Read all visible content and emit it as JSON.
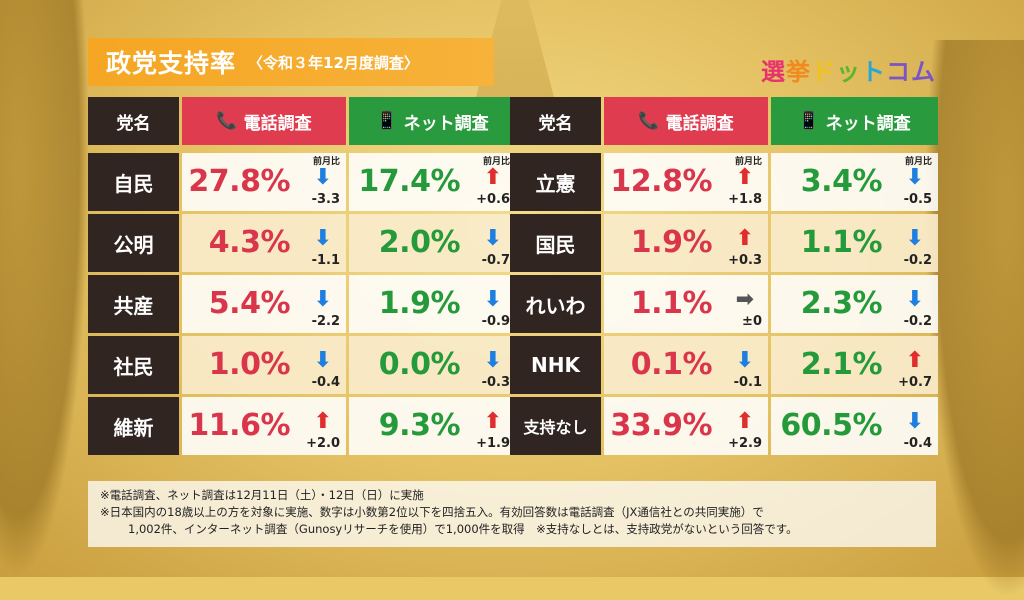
{
  "title": {
    "main": "政党支持率",
    "sub": "〈令和３年12月度調査〉"
  },
  "logo": [
    "選",
    "挙",
    "ド",
    "ッ",
    "ト",
    "コム"
  ],
  "headers": {
    "party": "党名",
    "phone": "電話調査",
    "net": "ネット調査",
    "prev": "前月比"
  },
  "left_rows": [
    {
      "party": "自民",
      "phone": {
        "pct": "27.8%",
        "dir": "down",
        "delta": "-3.3"
      },
      "net": {
        "pct": "17.4%",
        "dir": "up",
        "delta": "+0.6"
      }
    },
    {
      "party": "公明",
      "phone": {
        "pct": "4.3%",
        "dir": "down",
        "delta": "-1.1"
      },
      "net": {
        "pct": "2.0%",
        "dir": "down",
        "delta": "-0.7"
      }
    },
    {
      "party": "共産",
      "phone": {
        "pct": "5.4%",
        "dir": "down",
        "delta": "-2.2"
      },
      "net": {
        "pct": "1.9%",
        "dir": "down",
        "delta": "-0.9"
      }
    },
    {
      "party": "社民",
      "phone": {
        "pct": "1.0%",
        "dir": "down",
        "delta": "-0.4"
      },
      "net": {
        "pct": "0.0%",
        "dir": "down",
        "delta": "-0.3"
      }
    },
    {
      "party": "維新",
      "phone": {
        "pct": "11.6%",
        "dir": "up",
        "delta": "+2.0"
      },
      "net": {
        "pct": "9.3%",
        "dir": "up",
        "delta": "+1.9"
      }
    }
  ],
  "right_rows": [
    {
      "party": "立憲",
      "phone": {
        "pct": "12.8%",
        "dir": "up",
        "delta": "+1.8"
      },
      "net": {
        "pct": "3.4%",
        "dir": "down",
        "delta": "-0.5"
      }
    },
    {
      "party": "国民",
      "phone": {
        "pct": "1.9%",
        "dir": "up",
        "delta": "+0.3"
      },
      "net": {
        "pct": "1.1%",
        "dir": "down",
        "delta": "-0.2"
      }
    },
    {
      "party": "れいわ",
      "phone": {
        "pct": "1.1%",
        "dir": "flat",
        "delta": "±0"
      },
      "net": {
        "pct": "2.3%",
        "dir": "down",
        "delta": "-0.2"
      }
    },
    {
      "party": "NHK",
      "phone": {
        "pct": "0.1%",
        "dir": "down",
        "delta": "-0.1"
      },
      "net": {
        "pct": "2.1%",
        "dir": "up",
        "delta": "+0.7"
      }
    },
    {
      "party": "支持なし",
      "phone": {
        "pct": "33.9%",
        "dir": "up",
        "delta": "+2.9"
      },
      "net": {
        "pct": "60.5%",
        "dir": "down",
        "delta": "-0.4"
      }
    }
  ],
  "notes": [
    "※電話調査、ネット調査は12月11日（土）・12日（日）に実施",
    "※日本国内の18歳以上の方を対象に実施、数字は小数第2位以下を四捨五入。有効回答数は電話調査（JX通信社との共同実施）で",
    "1,002件、インターネット調査（Gunosyリサーチを使用）で1,000件を取得　※支持なしとは、支持政党がないという回答です。"
  ],
  "colors": {
    "phone": "#d9364c",
    "net": "#259a3a",
    "header_dark": "#302520",
    "title": "#f5a623",
    "arrow_up": "#e02d2d",
    "arrow_down": "#1f7fe0"
  }
}
